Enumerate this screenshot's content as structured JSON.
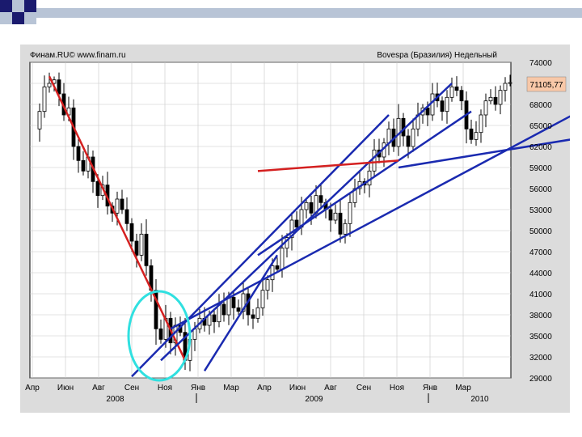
{
  "slide": {
    "decor_colors": {
      "navy": "#1a1a6e",
      "light_blue": "#b8c4d6"
    }
  },
  "chart_data": {
    "type": "candlestick",
    "source_label": "Финам.RU© www.finam.ru",
    "title": "Bovespa (Бразилия) Недельный",
    "last_value_label": "71105,77",
    "last_value": 71105.77,
    "ylim": [
      29000,
      74000
    ],
    "y_ticks": [
      74000,
      71000,
      68000,
      65000,
      62000,
      59000,
      56000,
      53000,
      50000,
      47000,
      44000,
      41000,
      38000,
      35000,
      32000,
      29000
    ],
    "y_tick_labels": [
      "74000",
      "71000",
      "68000",
      "65000",
      "62000",
      "59000",
      "56000",
      "53000",
      "50000",
      "47000",
      "44000",
      "41000",
      "38000",
      "35000",
      "32000",
      "29000"
    ],
    "x_tick_labels": [
      "Апр",
      "Июн",
      "Авг",
      "Сен",
      "Ноя",
      "Янв",
      "Мар",
      "Апр",
      "Июн",
      "Авг",
      "Сен",
      "Ноя",
      "Янв",
      "Мар"
    ],
    "year_labels": [
      {
        "label": "2008",
        "after_tick": 2
      },
      {
        "label": "2009",
        "after_tick": 8
      },
      {
        "label": "2010",
        "after_tick": 13
      }
    ],
    "year_dividers_after_tick": [
      5,
      12
    ],
    "grid": true,
    "colors": {
      "up": "#ffffff",
      "down": "#000000",
      "downtrend": "#d42020",
      "uptrend": "#1a2ab0",
      "highlight": "#30e0e0",
      "last_value_bg": "#f8c8a8"
    },
    "close_path": [
      [
        0,
        64500
      ],
      [
        1,
        67000
      ],
      [
        2,
        70500
      ],
      [
        3,
        71000
      ],
      [
        4,
        71500
      ],
      [
        5,
        69500
      ],
      [
        6,
        66500
      ],
      [
        7,
        67500
      ],
      [
        8,
        62000
      ],
      [
        9,
        60000
      ],
      [
        10,
        58500
      ],
      [
        11,
        60500
      ],
      [
        12,
        57000
      ],
      [
        13,
        55000
      ],
      [
        14,
        56500
      ],
      [
        15,
        53500
      ],
      [
        16,
        52500
      ],
      [
        17,
        54500
      ],
      [
        18,
        53000
      ],
      [
        19,
        51000
      ],
      [
        20,
        48500
      ],
      [
        21,
        46500
      ],
      [
        22,
        49500
      ],
      [
        23,
        45000
      ],
      [
        24,
        41500
      ],
      [
        25,
        36000
      ],
      [
        26,
        34500
      ],
      [
        27,
        37500
      ],
      [
        28,
        34000
      ],
      [
        29,
        36500
      ],
      [
        30,
        35500
      ],
      [
        31,
        31500
      ],
      [
        32,
        34500
      ],
      [
        33,
        36000
      ],
      [
        34,
        37500
      ],
      [
        35,
        36500
      ],
      [
        36,
        38000
      ],
      [
        37,
        37000
      ],
      [
        38,
        39500
      ],
      [
        39,
        38000
      ],
      [
        40,
        40500
      ],
      [
        41,
        39000
      ],
      [
        42,
        38500
      ],
      [
        43,
        41000
      ],
      [
        44,
        38000
      ],
      [
        45,
        37500
      ],
      [
        46,
        39000
      ],
      [
        47,
        41500
      ],
      [
        48,
        43000
      ],
      [
        49,
        45000
      ],
      [
        50,
        44500
      ],
      [
        51,
        47500
      ],
      [
        52,
        49000
      ],
      [
        53,
        51500
      ],
      [
        54,
        50500
      ],
      [
        55,
        53000
      ],
      [
        56,
        54000
      ],
      [
        57,
        52500
      ],
      [
        58,
        55000
      ],
      [
        59,
        54000
      ],
      [
        60,
        53000
      ],
      [
        61,
        51500
      ],
      [
        62,
        52500
      ],
      [
        63,
        49500
      ],
      [
        64,
        51000
      ],
      [
        65,
        54000
      ],
      [
        66,
        56000
      ],
      [
        67,
        57000
      ],
      [
        68,
        56500
      ],
      [
        69,
        58500
      ],
      [
        70,
        61500
      ],
      [
        71,
        60500
      ],
      [
        72,
        62500
      ],
      [
        73,
        64500
      ],
      [
        74,
        62000
      ],
      [
        75,
        66000
      ],
      [
        76,
        63500
      ],
      [
        77,
        62000
      ],
      [
        78,
        64500
      ],
      [
        79,
        66500
      ],
      [
        80,
        67500
      ],
      [
        81,
        66500
      ],
      [
        82,
        69500
      ],
      [
        83,
        68500
      ],
      [
        84,
        67000
      ],
      [
        85,
        69000
      ],
      [
        86,
        70500
      ],
      [
        87,
        70000
      ],
      [
        88,
        68500
      ],
      [
        89,
        64500
      ],
      [
        90,
        63000
      ],
      [
        91,
        64000
      ],
      [
        92,
        66500
      ],
      [
        93,
        68500
      ],
      [
        94,
        69000
      ],
      [
        95,
        68000
      ],
      [
        96,
        70000
      ],
      [
        97,
        71000
      ],
      [
        98,
        71105.77
      ]
    ],
    "trendlines": [
      {
        "kind": "down",
        "from": [
          3,
          72000
        ],
        "to": [
          31,
          31500
        ]
      },
      {
        "kind": "up",
        "from": [
          20,
          29200
        ],
        "to": [
          73,
          66500
        ]
      },
      {
        "kind": "up",
        "from": [
          26,
          31500
        ],
        "to": [
          86,
          71000
        ]
      },
      {
        "kind": "up",
        "from": [
          28,
          36000
        ],
        "to": [
          115,
          68000
        ]
      },
      {
        "kind": "up",
        "from": [
          35,
          30000
        ],
        "to": [
          50,
          46500
        ]
      },
      {
        "kind": "up",
        "from": [
          75,
          59000
        ],
        "to": [
          115,
          63500
        ]
      },
      {
        "kind": "up",
        "from": [
          46,
          46500
        ],
        "to": [
          90,
          67000
        ]
      },
      {
        "kind": "down",
        "from": [
          46,
          58500
        ],
        "to": [
          75,
          60000
        ]
      }
    ]
  }
}
